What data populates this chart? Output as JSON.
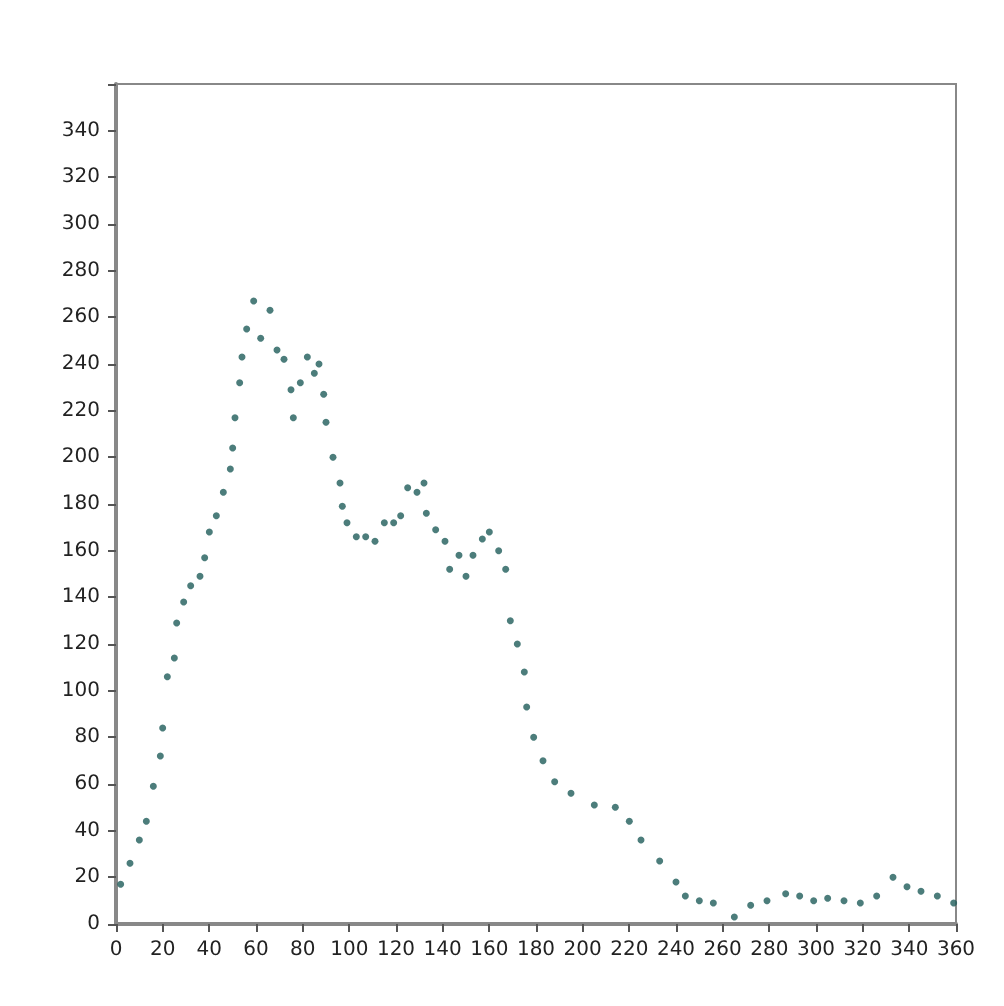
{
  "chart_data": {
    "type": "scatter",
    "marker": "circle",
    "grid": false,
    "xlim": [
      0,
      360
    ],
    "xticks": [
      0,
      20,
      40,
      60,
      80,
      100,
      120,
      140,
      160,
      180,
      200,
      220,
      240,
      260,
      280,
      300,
      320,
      340,
      360
    ],
    "ylim": [
      0,
      360
    ],
    "yticks": [
      0,
      20,
      40,
      60,
      80,
      100,
      120,
      140,
      160,
      180,
      200,
      220,
      240,
      260,
      280,
      300,
      320,
      340,
      {
        "value": 360,
        "label": null
      }
    ],
    "series": [
      {
        "color": "#1f5c5a",
        "x": [
          2,
          6,
          10,
          13,
          16,
          19,
          20,
          22,
          25,
          26,
          29,
          32,
          36,
          38,
          40,
          43,
          46,
          49,
          50,
          51,
          53,
          54,
          56,
          59,
          62,
          66,
          69,
          72,
          75,
          76,
          79,
          82,
          85,
          87,
          89,
          90,
          93,
          96,
          97,
          99,
          103,
          107,
          111,
          115,
          119,
          122,
          125,
          129,
          132,
          133,
          137,
          141,
          143,
          147,
          150,
          153,
          157,
          160,
          164,
          167,
          169,
          172,
          175,
          176,
          179,
          183,
          188,
          195,
          205,
          214,
          220,
          225,
          233,
          240,
          244,
          250,
          256,
          265,
          272,
          279,
          287,
          293,
          299,
          305,
          312,
          319,
          326,
          333,
          339,
          345,
          352,
          359
        ],
        "values": [
          17,
          26,
          36,
          44,
          59,
          72,
          84,
          106,
          114,
          129,
          138,
          145,
          149,
          157,
          168,
          175,
          185,
          195,
          204,
          217,
          232,
          243,
          255,
          267,
          251,
          263,
          246,
          242,
          229,
          217,
          232,
          243,
          236,
          240,
          227,
          215,
          200,
          189,
          179,
          172,
          166,
          166,
          164,
          172,
          172,
          175,
          187,
          185,
          189,
          176,
          169,
          164,
          152,
          158,
          149,
          158,
          165,
          168,
          160,
          152,
          130,
          120,
          108,
          93,
          80,
          70,
          61,
          56,
          51,
          50,
          44,
          36,
          27,
          18,
          12,
          10,
          9,
          3,
          8,
          10,
          13,
          12,
          10,
          11,
          10,
          9,
          12,
          20,
          16,
          14,
          12,
          9
        ]
      }
    ]
  }
}
